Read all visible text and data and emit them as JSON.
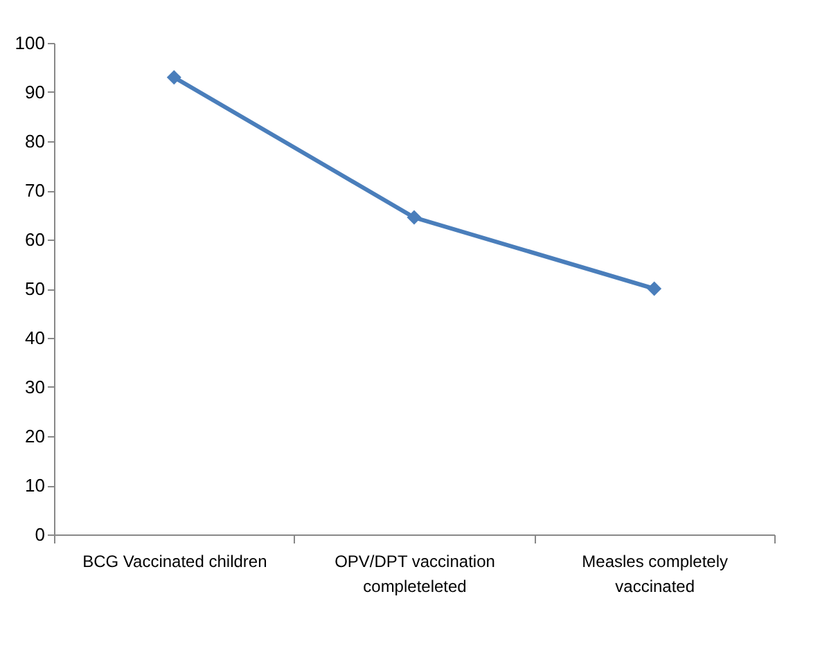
{
  "chart_data": {
    "type": "line",
    "categories": [
      "BCG Vaccinated children",
      "OPV/DPT vaccination completeleted",
      "Measles completely vaccinated"
    ],
    "series": [
      {
        "color": "#4a7ebb",
        "values": [
          93,
          64.5,
          50
        ]
      }
    ],
    "ylim": [
      0,
      100
    ],
    "yticks": [
      0,
      10,
      20,
      30,
      40,
      50,
      60,
      70,
      80,
      90,
      100
    ],
    "grid": false,
    "marker": "diamond",
    "line_style": "solid"
  }
}
